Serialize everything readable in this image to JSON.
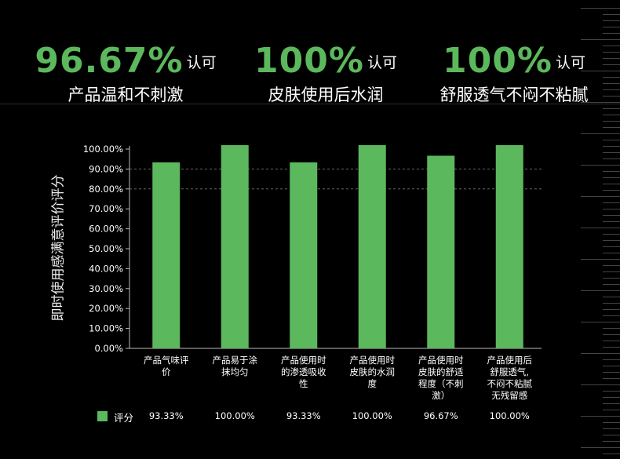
{
  "headline_stats": [
    {
      "value": "96.67%",
      "unit": "认可",
      "caption": "产品温和不刺激"
    },
    {
      "value": "100%",
      "unit": "认可",
      "caption": "皮肤使用后水润"
    },
    {
      "value": "100%",
      "unit": "认可",
      "caption": "舒服透气不闷不粘腻"
    }
  ],
  "chart_data": {
    "type": "bar",
    "ylabel": "即时使用感满意评价评分",
    "ylim": [
      0,
      100
    ],
    "y_ticks": [
      "0.00%",
      "10.00%",
      "20.00%",
      "30.00%",
      "40.00%",
      "50.00%",
      "60.00%",
      "70.00%",
      "80.00%",
      "90.00%",
      "100.00%"
    ],
    "categories": [
      [
        "产品气味评",
        "价"
      ],
      [
        "产品易于涂",
        "抹均匀"
      ],
      [
        "产品使用时",
        "的渗透吸收",
        "性"
      ],
      [
        "产品使用时",
        "皮肤的水润",
        "度"
      ],
      [
        "产品使用时",
        "皮肤的舒适",
        "程度（不刺",
        "激）"
      ],
      [
        "产品使用后",
        "舒服透气,",
        "不闷不粘腻",
        "无残留感"
      ]
    ],
    "series": [
      {
        "name": "评分",
        "values": [
          93.33,
          100,
          93.33,
          100,
          96.67,
          100
        ],
        "labels": [
          "93.33%",
          "100.00%",
          "93.33%",
          "100.00%",
          "96.67%",
          "100.00%"
        ]
      }
    ],
    "reference_lines": [
      80,
      90
    ],
    "bar_color": "#5cb85c"
  }
}
